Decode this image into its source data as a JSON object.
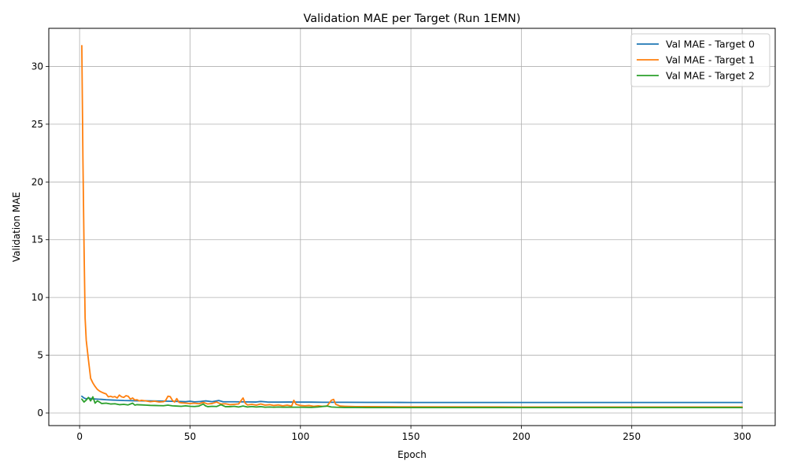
{
  "chart_data": {
    "type": "line",
    "title": "Validation MAE per Target (Run 1EMN)",
    "xlabel": "Epoch",
    "ylabel": "Validation MAE",
    "xlim": [
      -13.95,
      314.95
    ],
    "ylim": [
      -1.09,
      33.3
    ],
    "xticks": [
      0,
      50,
      100,
      150,
      200,
      250,
      300
    ],
    "yticks": [
      0,
      5,
      10,
      15,
      20,
      25,
      30
    ],
    "grid": true,
    "legend_position": "top-right",
    "series": [
      {
        "name": "Val MAE - Target 0",
        "color": "#1f77b4",
        "points": [
          [
            1,
            1.45
          ],
          [
            2,
            1.3
          ],
          [
            3,
            1.22
          ],
          [
            4,
            1.3
          ],
          [
            5,
            1.25
          ],
          [
            6,
            1.22
          ],
          [
            8,
            1.2
          ],
          [
            10,
            1.18
          ],
          [
            12,
            1.15
          ],
          [
            15,
            1.12
          ],
          [
            18,
            1.1
          ],
          [
            20,
            1.08
          ],
          [
            25,
            1.06
          ],
          [
            30,
            1.05
          ],
          [
            35,
            1.04
          ],
          [
            40,
            1.02
          ],
          [
            45,
            1.0
          ],
          [
            48,
            0.98
          ],
          [
            50,
            1.02
          ],
          [
            52,
            0.96
          ],
          [
            55,
            1.0
          ],
          [
            57,
            1.05
          ],
          [
            60,
            0.98
          ],
          [
            63,
            1.08
          ],
          [
            65,
            0.97
          ],
          [
            70,
            0.97
          ],
          [
            75,
            0.96
          ],
          [
            80,
            0.95
          ],
          [
            82,
            1.0
          ],
          [
            85,
            0.95
          ],
          [
            90,
            0.94
          ],
          [
            95,
            0.95
          ],
          [
            100,
            0.94
          ],
          [
            105,
            0.94
          ],
          [
            110,
            0.93
          ],
          [
            115,
            0.93
          ],
          [
            120,
            0.93
          ],
          [
            130,
            0.92
          ],
          [
            140,
            0.92
          ],
          [
            150,
            0.91
          ],
          [
            200,
            0.91
          ],
          [
            250,
            0.91
          ],
          [
            300,
            0.91
          ]
        ]
      },
      {
        "name": "Val MAE - Target 1",
        "color": "#ff7f0e",
        "points": [
          [
            1,
            31.8
          ],
          [
            1.5,
            22.0
          ],
          [
            2,
            14.5
          ],
          [
            2.5,
            8.2
          ],
          [
            3,
            6.3
          ],
          [
            4,
            4.6
          ],
          [
            5,
            3.0
          ],
          [
            6,
            2.6
          ],
          [
            7,
            2.3
          ],
          [
            8,
            2.05
          ],
          [
            9,
            1.9
          ],
          [
            10,
            1.8
          ],
          [
            11,
            1.72
          ],
          [
            12,
            1.65
          ],
          [
            13,
            1.4
          ],
          [
            14,
            1.45
          ],
          [
            15,
            1.38
          ],
          [
            16,
            1.42
          ],
          [
            17,
            1.3
          ],
          [
            18,
            1.55
          ],
          [
            19,
            1.4
          ],
          [
            20,
            1.35
          ],
          [
            21,
            1.5
          ],
          [
            22,
            1.45
          ],
          [
            23,
            1.2
          ],
          [
            24,
            1.3
          ],
          [
            25,
            1.12
          ],
          [
            26,
            1.15
          ],
          [
            27,
            1.05
          ],
          [
            28,
            1.1
          ],
          [
            30,
            1.05
          ],
          [
            32,
            0.98
          ],
          [
            34,
            1.02
          ],
          [
            36,
            0.95
          ],
          [
            38,
            0.98
          ],
          [
            39,
            1.1
          ],
          [
            40,
            1.45
          ],
          [
            41,
            1.42
          ],
          [
            42,
            1.1
          ],
          [
            43,
            0.95
          ],
          [
            44,
            1.25
          ],
          [
            45,
            0.92
          ],
          [
            46,
            0.88
          ],
          [
            48,
            0.85
          ],
          [
            50,
            0.82
          ],
          [
            52,
            0.85
          ],
          [
            54,
            0.8
          ],
          [
            56,
            0.92
          ],
          [
            58,
            0.78
          ],
          [
            60,
            0.82
          ],
          [
            62,
            0.95
          ],
          [
            64,
            0.78
          ],
          [
            66,
            0.8
          ],
          [
            68,
            0.72
          ],
          [
            70,
            0.75
          ],
          [
            72,
            0.78
          ],
          [
            74,
            1.3
          ],
          [
            75,
            0.85
          ],
          [
            76,
            0.7
          ],
          [
            78,
            0.75
          ],
          [
            80,
            0.68
          ],
          [
            82,
            0.78
          ],
          [
            84,
            0.68
          ],
          [
            86,
            0.72
          ],
          [
            88,
            0.65
          ],
          [
            90,
            0.7
          ],
          [
            92,
            0.62
          ],
          [
            94,
            0.68
          ],
          [
            96,
            0.6
          ],
          [
            97,
            1.1
          ],
          [
            98,
            0.75
          ],
          [
            100,
            0.65
          ],
          [
            102,
            0.62
          ],
          [
            104,
            0.65
          ],
          [
            106,
            0.58
          ],
          [
            108,
            0.62
          ],
          [
            110,
            0.58
          ],
          [
            112,
            0.6
          ],
          [
            114,
            1.1
          ],
          [
            115,
            1.18
          ],
          [
            116,
            0.75
          ],
          [
            118,
            0.6
          ],
          [
            120,
            0.58
          ],
          [
            125,
            0.55
          ],
          [
            130,
            0.55
          ],
          [
            140,
            0.54
          ],
          [
            150,
            0.53
          ],
          [
            200,
            0.52
          ],
          [
            250,
            0.52
          ],
          [
            300,
            0.52
          ]
        ]
      },
      {
        "name": "Val MAE - Target 2",
        "color": "#2ca02c",
        "points": [
          [
            1,
            1.2
          ],
          [
            2,
            0.95
          ],
          [
            3,
            1.12
          ],
          [
            4,
            1.35
          ],
          [
            5,
            1.05
          ],
          [
            6,
            1.4
          ],
          [
            7,
            0.85
          ],
          [
            8,
            1.05
          ],
          [
            9,
            0.95
          ],
          [
            10,
            0.82
          ],
          [
            12,
            0.85
          ],
          [
            14,
            0.78
          ],
          [
            16,
            0.8
          ],
          [
            18,
            0.72
          ],
          [
            20,
            0.75
          ],
          [
            22,
            0.7
          ],
          [
            24,
            0.85
          ],
          [
            25,
            0.68
          ],
          [
            26,
            0.72
          ],
          [
            28,
            0.7
          ],
          [
            30,
            0.68
          ],
          [
            32,
            0.66
          ],
          [
            34,
            0.65
          ],
          [
            36,
            0.64
          ],
          [
            38,
            0.63
          ],
          [
            40,
            0.68
          ],
          [
            42,
            0.62
          ],
          [
            44,
            0.6
          ],
          [
            46,
            0.58
          ],
          [
            48,
            0.62
          ],
          [
            50,
            0.58
          ],
          [
            52,
            0.56
          ],
          [
            54,
            0.6
          ],
          [
            56,
            0.78
          ],
          [
            57,
            0.62
          ],
          [
            58,
            0.55
          ],
          [
            60,
            0.58
          ],
          [
            62,
            0.56
          ],
          [
            64,
            0.72
          ],
          [
            66,
            0.55
          ],
          [
            68,
            0.55
          ],
          [
            70,
            0.58
          ],
          [
            72,
            0.52
          ],
          [
            74,
            0.6
          ],
          [
            76,
            0.52
          ],
          [
            78,
            0.56
          ],
          [
            80,
            0.52
          ],
          [
            82,
            0.55
          ],
          [
            84,
            0.5
          ],
          [
            86,
            0.52
          ],
          [
            88,
            0.5
          ],
          [
            90,
            0.52
          ],
          [
            92,
            0.5
          ],
          [
            94,
            0.51
          ],
          [
            96,
            0.5
          ],
          [
            98,
            0.5
          ],
          [
            100,
            0.5
          ],
          [
            105,
            0.49
          ],
          [
            108,
            0.52
          ],
          [
            110,
            0.56
          ],
          [
            112,
            0.6
          ],
          [
            114,
            0.52
          ],
          [
            116,
            0.5
          ],
          [
            120,
            0.48
          ],
          [
            125,
            0.48
          ],
          [
            130,
            0.47
          ],
          [
            150,
            0.47
          ],
          [
            200,
            0.47
          ],
          [
            250,
            0.47
          ],
          [
            300,
            0.47
          ]
        ]
      }
    ]
  }
}
